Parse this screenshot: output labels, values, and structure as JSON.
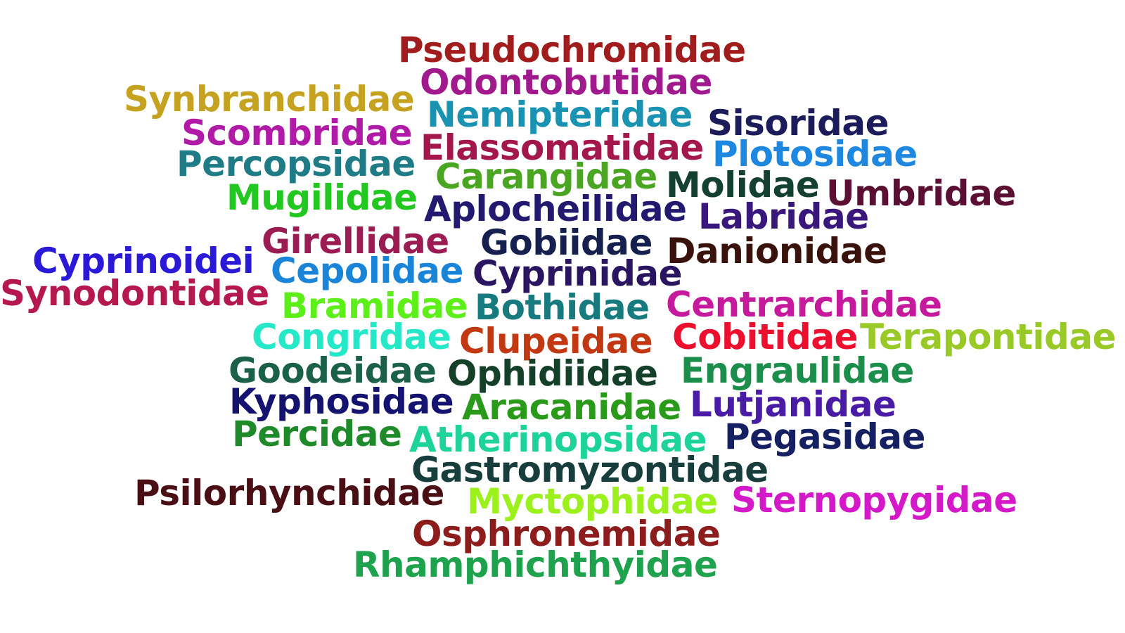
{
  "words": [
    {
      "text": "Pseudochromidae",
      "color": "#a11d1d"
    },
    {
      "text": "Odontobutidae",
      "color": "#a11a8d"
    },
    {
      "text": "Synbranchidae",
      "color": "#c5a320"
    },
    {
      "text": "Nemipteridae",
      "color": "#1a93b3"
    },
    {
      "text": "Sisoridae",
      "color": "#1c1c5a"
    },
    {
      "text": "Scombridae",
      "color": "#b01aa6"
    },
    {
      "text": "Elassomatidae",
      "color": "#a3174c"
    },
    {
      "text": "Plotosidae",
      "color": "#1e88e0"
    },
    {
      "text": "Percopsidae",
      "color": "#1f7b85"
    },
    {
      "text": "Carangidae",
      "color": "#4aa522"
    },
    {
      "text": "Molidae",
      "color": "#134030"
    },
    {
      "text": "Umbridae",
      "color": "#5a0f33"
    },
    {
      "text": "Mugilidae",
      "color": "#22c71f"
    },
    {
      "text": "Aplocheilidae",
      "color": "#231a6f"
    },
    {
      "text": "Labridae",
      "color": "#3a177a"
    },
    {
      "text": "Girellidae",
      "color": "#9a1c52"
    },
    {
      "text": "Gobiidae",
      "color": "#16204e"
    },
    {
      "text": "Danionidae",
      "color": "#3a120c"
    },
    {
      "text": "Cyprinoidei",
      "color": "#2a1ad8"
    },
    {
      "text": "Cepolidae",
      "color": "#1a84d9"
    },
    {
      "text": "Cyprinidae",
      "color": "#2a1660"
    },
    {
      "text": "Synodontidae",
      "color": "#b5184f"
    },
    {
      "text": "Bramidae",
      "color": "#5cf018"
    },
    {
      "text": "Bothidae",
      "color": "#167a7f"
    },
    {
      "text": "Centrarchidae",
      "color": "#c51a9c"
    },
    {
      "text": "Congridae",
      "color": "#25e8c9"
    },
    {
      "text": "Clupeidae",
      "color": "#c23813"
    },
    {
      "text": "Cobitidae",
      "color": "#ec0f2e"
    },
    {
      "text": "Terapontidae",
      "color": "#98c926"
    },
    {
      "text": "Goodeidae",
      "color": "#1b6048"
    },
    {
      "text": "Ophidiidae",
      "color": "#14402a"
    },
    {
      "text": "Engraulidae",
      "color": "#1c8e4c"
    },
    {
      "text": "Kyphosidae",
      "color": "#141470"
    },
    {
      "text": "Aracanidae",
      "color": "#2a9a1a"
    },
    {
      "text": "Lutjanidae",
      "color": "#4a1ca6"
    },
    {
      "text": "Percidae",
      "color": "#1f8a2a"
    },
    {
      "text": "Atherinopsidae",
      "color": "#1dd39a"
    },
    {
      "text": "Pegasidae",
      "color": "#142061"
    },
    {
      "text": "Gastromyzontidae",
      "color": "#173e3c"
    },
    {
      "text": "Psilorhynchidae",
      "color": "#4a0f15"
    },
    {
      "text": "Myctophidae",
      "color": "#9cf01c"
    },
    {
      "text": "Sternopygidae",
      "color": "#d41ac8"
    },
    {
      "text": "Osphronemidae",
      "color": "#8d1c1c"
    },
    {
      "text": "Rhamphichthyidae",
      "color": "#1fa24e"
    }
  ]
}
